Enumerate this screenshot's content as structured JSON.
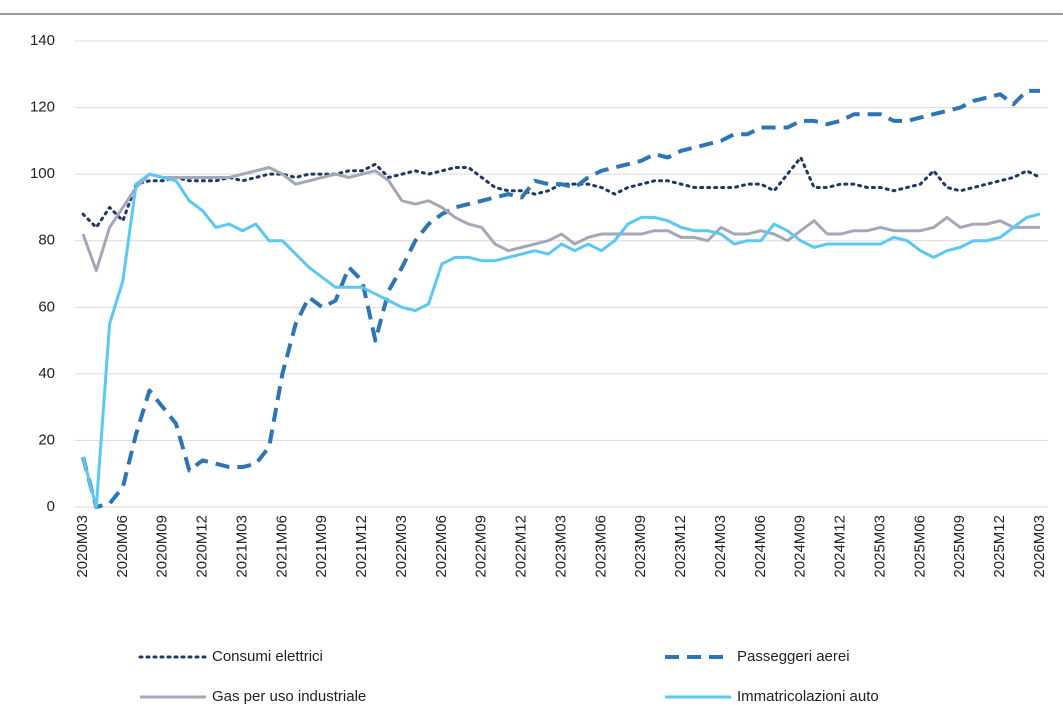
{
  "chart_data": {
    "type": "line",
    "categories": [
      "2020M03",
      null,
      null,
      "2020M06",
      null,
      null,
      "2020M09",
      null,
      null,
      "2020M12",
      null,
      null,
      "2021M03",
      null,
      null,
      "2021M06",
      null,
      null,
      "2021M09",
      null,
      null,
      "2021M12",
      null,
      null,
      "2022M03",
      null,
      null,
      "2022M06",
      null,
      null,
      "2022M09",
      null,
      null,
      "2022M12",
      null,
      null,
      "2023M03",
      null,
      null,
      "2023M06",
      null,
      null,
      "2023M09",
      null,
      null,
      "2023M12",
      null,
      null,
      "2024M03",
      null,
      null,
      "2024M06",
      null,
      null,
      "2024M09",
      null,
      null,
      "2024M12",
      null,
      null,
      "2025M03",
      null,
      null,
      "2025M06",
      null,
      null,
      "2025M09",
      null,
      null,
      "2025M12",
      null,
      null,
      "2026M03"
    ],
    "series": [
      {
        "name": "Consumi elettrici",
        "color": "#1f3864",
        "dash": "dotted",
        "values": [
          88,
          84,
          90,
          86,
          97,
          98,
          98,
          99,
          98,
          98,
          98,
          99,
          98,
          99,
          100,
          100,
          99,
          100,
          100,
          100,
          101,
          101,
          103,
          99,
          100,
          101,
          100,
          101,
          102,
          102,
          99,
          96,
          95,
          95,
          94,
          95,
          97,
          97,
          97,
          96,
          94,
          96,
          97,
          98,
          98,
          97,
          96,
          96,
          96,
          96,
          97,
          97,
          95,
          100,
          105,
          96,
          96,
          97,
          97,
          96,
          96,
          95,
          96,
          97,
          101,
          96,
          95,
          96,
          97,
          98,
          99,
          101,
          99
        ]
      },
      {
        "name": "Passeggeri aerei",
        "color": "#2e75b6",
        "dash": "dashed",
        "values": [
          15,
          0,
          1,
          6,
          22,
          35,
          30,
          25,
          11,
          14,
          13,
          12,
          12,
          13,
          18,
          40,
          55,
          63,
          60,
          62,
          72,
          68,
          50,
          65,
          72,
          80,
          85,
          88,
          90,
          91,
          92,
          93,
          94,
          93,
          98,
          97,
          97,
          96,
          99,
          101,
          102,
          103,
          104,
          106,
          105,
          107,
          108,
          109,
          110,
          112,
          112,
          114,
          114,
          114,
          116,
          116,
          115,
          116,
          118,
          118,
          118,
          116,
          116,
          117,
          118,
          119,
          120,
          122,
          123,
          124,
          121,
          125,
          125
        ]
      },
      {
        "name": "Gas per uso industriale",
        "color": "#a6a6b8",
        "dash": "solid",
        "values": [
          82,
          71,
          84,
          90,
          96,
          100,
          99,
          99,
          99,
          99,
          99,
          99,
          100,
          101,
          102,
          100,
          97,
          98,
          99,
          100,
          99,
          100,
          101,
          98,
          92,
          91,
          92,
          90,
          87,
          85,
          84,
          79,
          77,
          78,
          79,
          80,
          82,
          79,
          81,
          82,
          82,
          82,
          82,
          83,
          83,
          81,
          81,
          80,
          84,
          82,
          82,
          83,
          82,
          80,
          83,
          86,
          82,
          82,
          83,
          83,
          84,
          83,
          83,
          83,
          84,
          87,
          84,
          85,
          85,
          86,
          84,
          84,
          84
        ]
      },
      {
        "name": "Immatricolazioni auto",
        "color": "#5bc8f0",
        "dash": "solid",
        "values": [
          15,
          0,
          55,
          68,
          97,
          100,
          99,
          98,
          92,
          89,
          84,
          85,
          83,
          85,
          80,
          80,
          76,
          72,
          69,
          66,
          66,
          66,
          64,
          62,
          60,
          59,
          61,
          73,
          75,
          75,
          74,
          74,
          75,
          76,
          77,
          76,
          79,
          77,
          79,
          77,
          80,
          85,
          87,
          87,
          86,
          84,
          83,
          83,
          82,
          79,
          80,
          80,
          85,
          83,
          80,
          78,
          79,
          79,
          79,
          79,
          79,
          81,
          80,
          77,
          75,
          77,
          78,
          80,
          80,
          81,
          84,
          87,
          88
        ]
      }
    ],
    "ylim": [
      0,
      140
    ],
    "yticks": [
      0,
      20,
      40,
      60,
      80,
      100,
      120,
      140
    ],
    "grid": true,
    "legend": "bottom"
  }
}
